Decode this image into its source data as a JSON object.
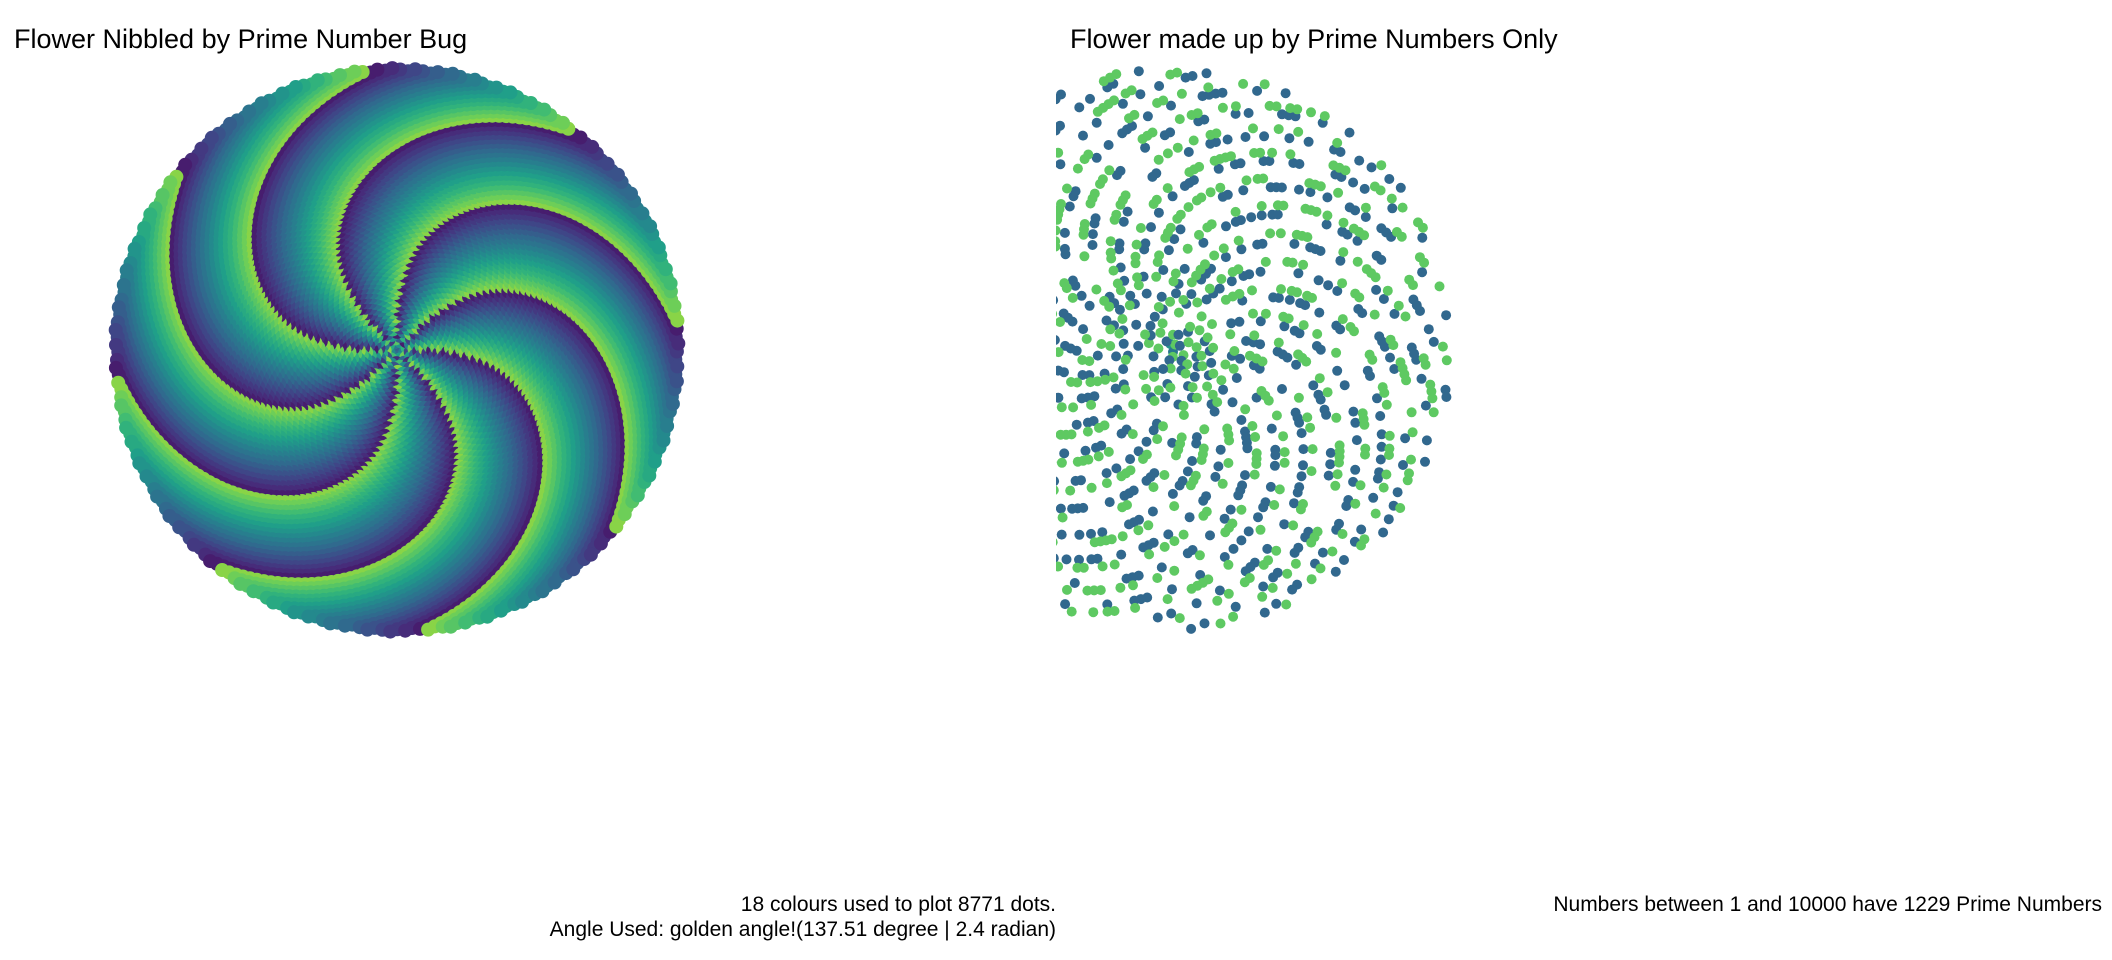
{
  "chart_data": [
    {
      "type": "scatter",
      "title": "Flower Nibbled by Prime Number Bug",
      "caption_line1": "18 colours used to plot 8771 dots.",
      "caption_line2": "Angle Used:  golden angle!(137.51 degree | 2.4 radian)",
      "n_points": 8771,
      "n_colours": 18,
      "angle_radian": 2.4,
      "angle_degree": 137.51,
      "palette": "viridis",
      "axes_visible": false,
      "grid": false,
      "legend": "none"
    },
    {
      "type": "scatter",
      "title": "Flower made up by Prime Numbers Only",
      "caption_line1": "Numbers between 1 and  10000 have 1229  Prime Numbers",
      "range_max": 10000,
      "n_points": 1229,
      "angle_radian": 2.4,
      "palette": [
        "#440154",
        "#31688e",
        "#21918c",
        "#2a788e",
        "#35b779",
        "#5ec962"
      ],
      "axes_visible": false,
      "grid": false,
      "legend": "none"
    }
  ]
}
